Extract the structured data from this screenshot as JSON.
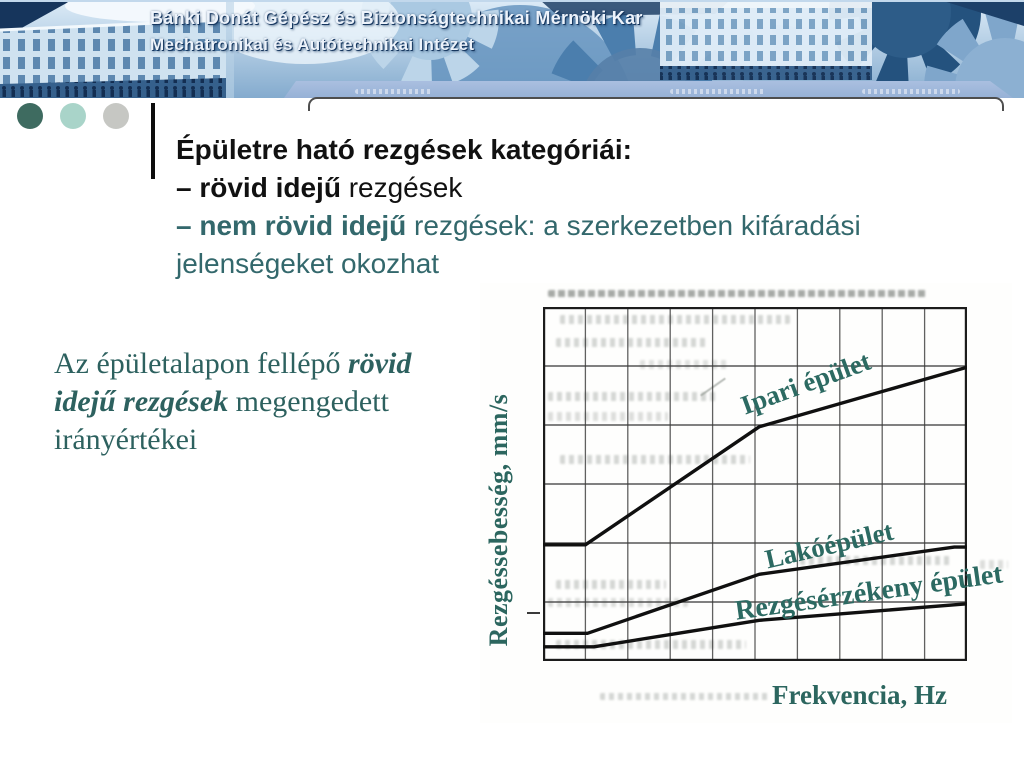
{
  "slide": {
    "header": {
      "line1": "Bánki Donát Gépész és Biztonságtechnikai Mérnöki Kar",
      "line2": "Mechatronikai és Autótechnikai Intézet"
    },
    "title_block": {
      "line1": "Épületre ható rezgések kategóriái:",
      "line2_bold": "– rövid idejű",
      "line2_rest": " rezgések",
      "line3_bold": "– nem rövid idejű",
      "line3_rest": " rezgések: a szerkezetben kifáradási",
      "line4": "jelenségeket okozhat"
    },
    "caption": {
      "lines": [
        {
          "pre": "Az épületalapon fellépő ",
          "em": "rövid"
        },
        {
          "em": "idejű rezgések",
          "post": " megengedett"
        },
        {
          "pre": "irányértékei"
        }
      ]
    },
    "decor_dot_colors": [
      "#3e6b60",
      "#a9d4c9",
      "#c6c7c3"
    ]
  },
  "chart_data": {
    "type": "line",
    "title": "",
    "xlabel": "Frekvencia, Hz",
    "ylabel": "Rezgéssebesség, mm/s",
    "tick_labels_visible": false,
    "axis_note": "scanned schematic diagram - no numeric tick labels shown",
    "grid": {
      "cols": 10,
      "rows": 6,
      "on": true
    },
    "x_range_grid_units": [
      0,
      10
    ],
    "y_range_grid_units": [
      0,
      6
    ],
    "legend_position": "inline-labels-on-chart",
    "series": [
      {
        "name": "Ipari épület",
        "points_grid_units": [
          [
            0,
            1.97
          ],
          [
            1,
            1.97
          ],
          [
            5.1,
            3.97
          ],
          [
            10,
            4.98
          ]
        ]
      },
      {
        "name": "Lakóépület",
        "points_grid_units": [
          [
            0,
            0.47
          ],
          [
            1.05,
            0.47
          ],
          [
            5.1,
            1.47
          ],
          [
            9.7,
            1.93
          ],
          [
            10,
            1.93
          ]
        ]
      },
      {
        "name": "Rezgésérzékeny épület",
        "points_grid_units": [
          [
            0,
            0.24
          ],
          [
            1.2,
            0.24
          ],
          [
            5.1,
            0.69
          ],
          [
            10,
            0.97
          ]
        ]
      }
    ],
    "line_color": "#101010",
    "grid_color": "#3a3a3a"
  },
  "colors": {
    "teal_sans_text": "#33686c",
    "teal_serif_text": "#2d615f",
    "chart_label_teal": "#2c6a62",
    "banner_bar": "#9db7da",
    "black_text": "#111111"
  }
}
